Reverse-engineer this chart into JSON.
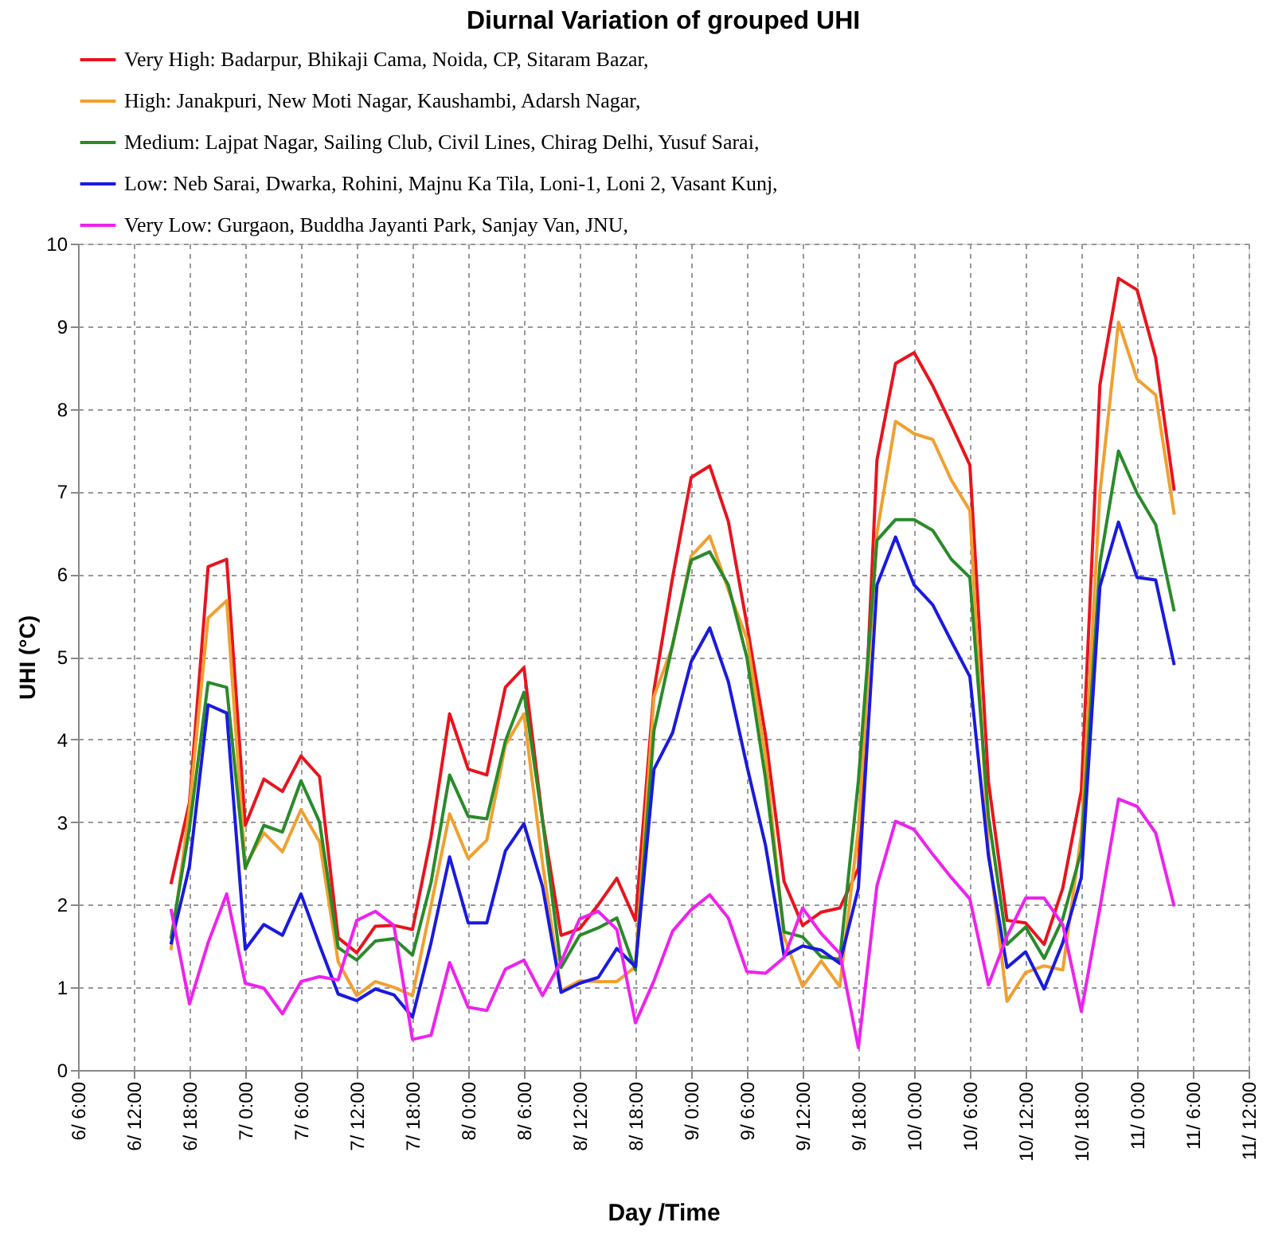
{
  "chart_data": {
    "type": "line",
    "title": "Diurnal Variation of grouped UHI",
    "xlabel": "Day /Time",
    "ylabel": "UHI (°C)",
    "ylim": [
      0,
      10
    ],
    "yticks": [
      0,
      1,
      2,
      3,
      4,
      5,
      6,
      7,
      8,
      9,
      10
    ],
    "categories": [
      "6/ 6:00",
      null,
      null,
      "6/ 12:00",
      null,
      null,
      "6/ 18:00",
      null,
      null,
      "7/ 0:00",
      null,
      null,
      "7/ 6:00",
      null,
      null,
      "7/ 12:00",
      null,
      null,
      "7/ 18:00",
      null,
      null,
      "8/ 0:00",
      null,
      null,
      "8/ 6:00",
      null,
      null,
      "8/ 12:00",
      null,
      null,
      "8/ 18:00",
      null,
      null,
      "9/ 0:00",
      null,
      null,
      "9/ 6:00",
      null,
      null,
      "9/ 12:00",
      null,
      null,
      "9/ 18:00",
      null,
      null,
      "10/ 0:00",
      null,
      null,
      "10/ 6:00",
      null,
      null,
      "10/ 12:00",
      null,
      null,
      "10/ 18:00",
      null,
      null,
      "11/ 0:00",
      null,
      null,
      "11/ 6:00",
      null,
      null,
      "11/ 12:00"
    ],
    "grid": true,
    "legend": "top",
    "marker": "none",
    "line_style": "solid",
    "series": [
      {
        "name": "Very High: Badarpur, Bhikaji Cama, Noida, CP, Sitaram Bazar,",
        "color": "#e8141e",
        "values": [
          null,
          null,
          null,
          null,
          null,
          2.25,
          3.24,
          6.09,
          6.18,
          2.96,
          3.52,
          3.37,
          3.8,
          3.55,
          1.6,
          1.42,
          1.74,
          1.75,
          1.7,
          2.82,
          4.31,
          3.64,
          3.57,
          4.63,
          4.87,
          3.03,
          1.63,
          1.71,
          2.0,
          2.32,
          1.81,
          4.6,
          5.96,
          7.17,
          7.31,
          6.64,
          5.39,
          4.05,
          2.28,
          1.75,
          1.91,
          1.96,
          2.44,
          7.38,
          8.55,
          8.68,
          8.28,
          7.81,
          7.32,
          3.49,
          1.81,
          1.78,
          1.52,
          2.2,
          3.38,
          8.29,
          9.58,
          9.44,
          8.62,
          7.01,
          null,
          null,
          null,
          null
        ]
      },
      {
        "name": "High: Janakpuri, New Moti Nagar, Kaushambi, Adarsh Nagar,",
        "color": "#f0a030",
        "values": [
          null,
          null,
          null,
          null,
          null,
          1.45,
          3.18,
          5.47,
          5.68,
          2.47,
          2.87,
          2.64,
          3.15,
          2.76,
          1.31,
          0.9,
          1.07,
          1.0,
          0.9,
          1.99,
          3.1,
          2.56,
          2.78,
          3.93,
          4.31,
          2.5,
          0.96,
          1.08,
          1.07,
          1.07,
          1.25,
          4.52,
          5.13,
          6.22,
          6.46,
          5.81,
          5.22,
          3.8,
          1.61,
          1.01,
          1.32,
          1.01,
          2.92,
          6.5,
          7.85,
          7.7,
          7.63,
          7.14,
          6.77,
          2.68,
          0.83,
          1.18,
          1.26,
          1.21,
          2.85,
          6.98,
          9.05,
          8.36,
          8.17,
          6.72,
          null,
          null,
          null,
          null
        ]
      },
      {
        "name": "Medium: Lajpat Nagar, Sailing Club, Civil Lines, Chirag Delhi, Yusuf Sarai,",
        "color": "#2a8a2a",
        "values": [
          null,
          null,
          null,
          null,
          null,
          1.59,
          2.93,
          4.69,
          4.63,
          2.44,
          2.96,
          2.88,
          3.5,
          3.0,
          1.48,
          1.33,
          1.56,
          1.59,
          1.39,
          2.27,
          3.57,
          3.07,
          3.04,
          3.98,
          4.57,
          3.02,
          1.24,
          1.63,
          1.72,
          1.84,
          1.21,
          4.11,
          5.15,
          6.17,
          6.27,
          5.87,
          4.99,
          3.53,
          1.67,
          1.61,
          1.37,
          1.34,
          3.5,
          6.41,
          6.66,
          6.66,
          6.53,
          6.18,
          5.96,
          3.07,
          1.52,
          1.73,
          1.35,
          1.83,
          2.65,
          6.13,
          7.49,
          6.98,
          6.6,
          5.55,
          null,
          null,
          null,
          null
        ]
      },
      {
        "name": "Low: Neb Sarai, Dwarka, Rohini, Majnu Ka Tila, Loni-1, Loni 2, Vasant Kunj,",
        "color": "#1a1ae0",
        "values": [
          null,
          null,
          null,
          null,
          null,
          1.52,
          2.47,
          4.42,
          4.32,
          1.46,
          1.76,
          1.63,
          2.13,
          1.51,
          0.92,
          0.84,
          0.98,
          0.91,
          0.64,
          1.54,
          2.58,
          1.78,
          1.78,
          2.65,
          2.98,
          2.22,
          0.94,
          1.05,
          1.12,
          1.47,
          1.25,
          3.64,
          4.08,
          4.94,
          5.35,
          4.7,
          3.68,
          2.72,
          1.38,
          1.5,
          1.45,
          1.29,
          2.2,
          5.87,
          6.45,
          5.87,
          5.63,
          5.19,
          4.76,
          2.59,
          1.24,
          1.43,
          0.98,
          1.54,
          2.33,
          5.85,
          6.63,
          5.96,
          5.93,
          4.9,
          null,
          null,
          null,
          null
        ]
      },
      {
        "name": "Very Low: Gurgaon, Buddha Jayanti Park, Sanjay Van, JNU,",
        "color": "#ee22ee",
        "values": [
          null,
          null,
          null,
          null,
          null,
          1.95,
          0.8,
          1.54,
          2.13,
          1.05,
          0.99,
          0.68,
          1.07,
          1.13,
          1.09,
          1.81,
          1.92,
          1.75,
          0.37,
          0.42,
          1.3,
          0.76,
          0.72,
          1.22,
          1.33,
          0.9,
          1.31,
          1.83,
          1.92,
          1.7,
          0.57,
          1.08,
          1.68,
          1.94,
          2.12,
          1.84,
          1.19,
          1.17,
          1.36,
          1.96,
          1.65,
          1.41,
          0.27,
          2.23,
          3.01,
          2.91,
          2.61,
          2.33,
          2.07,
          1.03,
          1.62,
          2.08,
          2.08,
          1.76,
          0.71,
          1.96,
          3.28,
          3.19,
          2.87,
          1.98,
          null,
          null,
          null,
          null
        ]
      }
    ]
  }
}
